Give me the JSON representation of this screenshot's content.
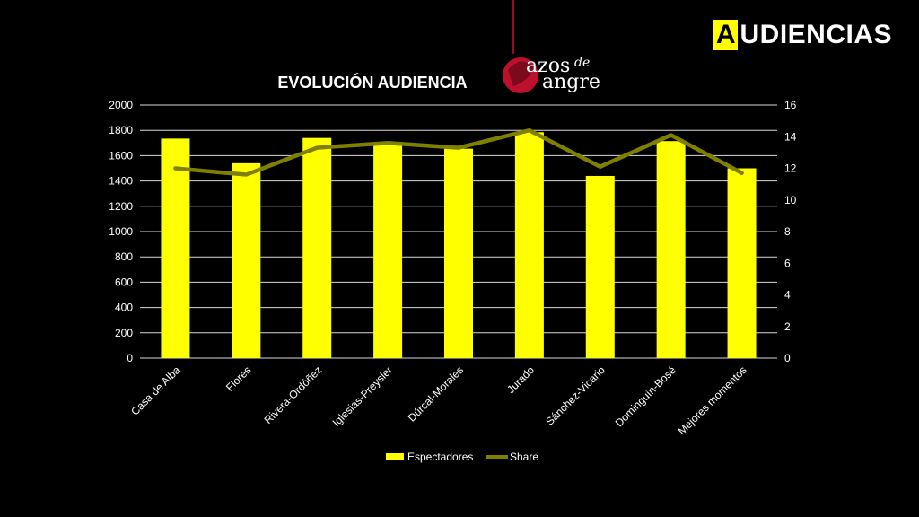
{
  "brand": {
    "first_letter": "A",
    "rest": "UDIENCIAS"
  },
  "logo": {
    "line1": "azos",
    "line1_suffix": "de",
    "line2": "angre",
    "accent_color": "#c8102e"
  },
  "chart_data": {
    "type": "bar+line",
    "title": "EVOLUCIÓN AUDIENCIA",
    "categories": [
      "Casa de Alba",
      "Flores",
      "Rivera-Ordóñez",
      "Iglesias-Preysler",
      "Dúrcal-Morales",
      "Jurado",
      "Sánchez-Vicario",
      "Dominguín-Bosé",
      "Mejores momentos"
    ],
    "series": [
      {
        "name": "Espectadores",
        "type": "bar",
        "axis": "left",
        "color": "#ffff00",
        "values": [
          1735,
          1540,
          1740,
          1695,
          1655,
          1785,
          1440,
          1715,
          1500
        ]
      },
      {
        "name": "Share",
        "type": "line",
        "axis": "right",
        "color": "#808000",
        "values": [
          12.0,
          11.6,
          13.3,
          13.6,
          13.3,
          14.4,
          12.1,
          14.1,
          11.7
        ]
      }
    ],
    "y_left": {
      "min": 0,
      "max": 2000,
      "step": 200,
      "ticks": [
        "0",
        "200",
        "400",
        "600",
        "800",
        "1000",
        "1200",
        "1400",
        "1600",
        "1800",
        "2000"
      ]
    },
    "y_right": {
      "min": 0,
      "max": 16,
      "step": 2,
      "ticks": [
        "0",
        "2",
        "4",
        "6",
        "8",
        "10",
        "12",
        "14",
        "16"
      ]
    },
    "grid": true,
    "legend_position": "bottom"
  }
}
